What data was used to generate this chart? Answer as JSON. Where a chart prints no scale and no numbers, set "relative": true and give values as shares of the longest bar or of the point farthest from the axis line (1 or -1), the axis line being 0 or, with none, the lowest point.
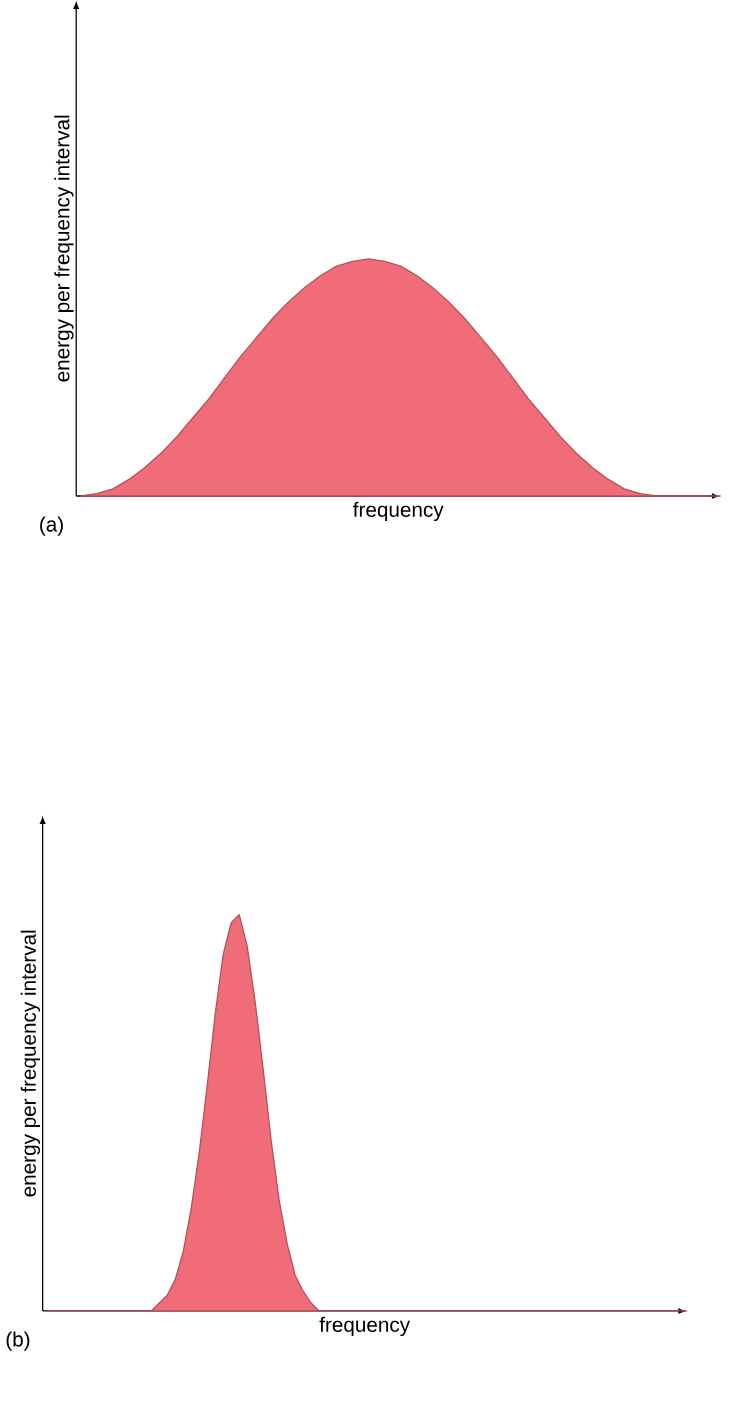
{
  "chart_data": [
    {
      "type": "area",
      "relative": true,
      "color": "#f06c78",
      "xlabel": "frequency",
      "ylabel": "energy per frequency interval",
      "annotations": [
        "(a)"
      ],
      "categories": [
        null,
        null,
        null,
        null,
        null,
        null,
        null,
        null,
        null,
        null,
        null,
        null,
        null,
        null,
        null,
        null,
        null,
        null,
        null,
        null,
        null,
        null,
        null,
        null,
        null,
        null,
        null,
        null,
        null,
        null,
        null,
        null,
        null,
        null,
        null,
        null,
        null,
        null,
        null,
        null,
        null
      ],
      "values": [
        0,
        0.01,
        0.03,
        0.07,
        0.12,
        0.18,
        0.25,
        0.33,
        0.41,
        0.5,
        0.59,
        0.67,
        0.75,
        0.82,
        0.88,
        0.93,
        0.97,
        0.99,
        1,
        0.99,
        0.97,
        0.93,
        0.88,
        0.82,
        0.75,
        0.67,
        0.59,
        0.5,
        0.41,
        0.33,
        0.25,
        0.18,
        0.12,
        0.07,
        0.03,
        0.01,
        0,
        0,
        0,
        0,
        0
      ]
    },
    {
      "type": "area",
      "relative": true,
      "color": "#f06c78",
      "xlabel": "frequency",
      "ylabel": "energy per frequency interval",
      "annotations": [
        "(b)"
      ],
      "categories": [
        null,
        null,
        null,
        null,
        null,
        null,
        null,
        null,
        null,
        null,
        null,
        null,
        null,
        null,
        null,
        null,
        null,
        null,
        null,
        null,
        null,
        null,
        null,
        null,
        null,
        null,
        null,
        null,
        null,
        null,
        null,
        null,
        null,
        null,
        null,
        null,
        null,
        null,
        null,
        null,
        null,
        null,
        null,
        null,
        null,
        null,
        null,
        null,
        null,
        null,
        null,
        null,
        null,
        null,
        null,
        null,
        null,
        null,
        null,
        null,
        null,
        null,
        null,
        null,
        null,
        null,
        null,
        null,
        null,
        null,
        null,
        null,
        null,
        null,
        null,
        null,
        null,
        null,
        null,
        null,
        null
      ],
      "values": [
        0,
        0,
        0,
        0,
        0,
        0,
        0,
        0,
        0,
        0,
        0,
        0,
        0,
        0,
        0.02,
        0.04,
        0.08,
        0.15,
        0.26,
        0.4,
        0.57,
        0.75,
        0.9,
        0.98,
        1,
        0.92,
        0.78,
        0.61,
        0.43,
        0.28,
        0.17,
        0.09,
        0.05,
        0.02,
        0,
        0,
        0,
        0,
        0,
        0,
        0,
        0,
        0,
        0,
        0,
        0,
        0,
        0,
        0,
        0,
        0,
        0,
        0,
        0,
        0,
        0,
        0,
        0,
        0,
        0,
        0,
        0,
        0,
        0,
        0,
        0,
        0,
        0,
        0,
        0,
        0,
        0,
        0,
        0,
        0,
        0,
        0,
        0,
        0,
        0,
        0
      ]
    }
  ]
}
